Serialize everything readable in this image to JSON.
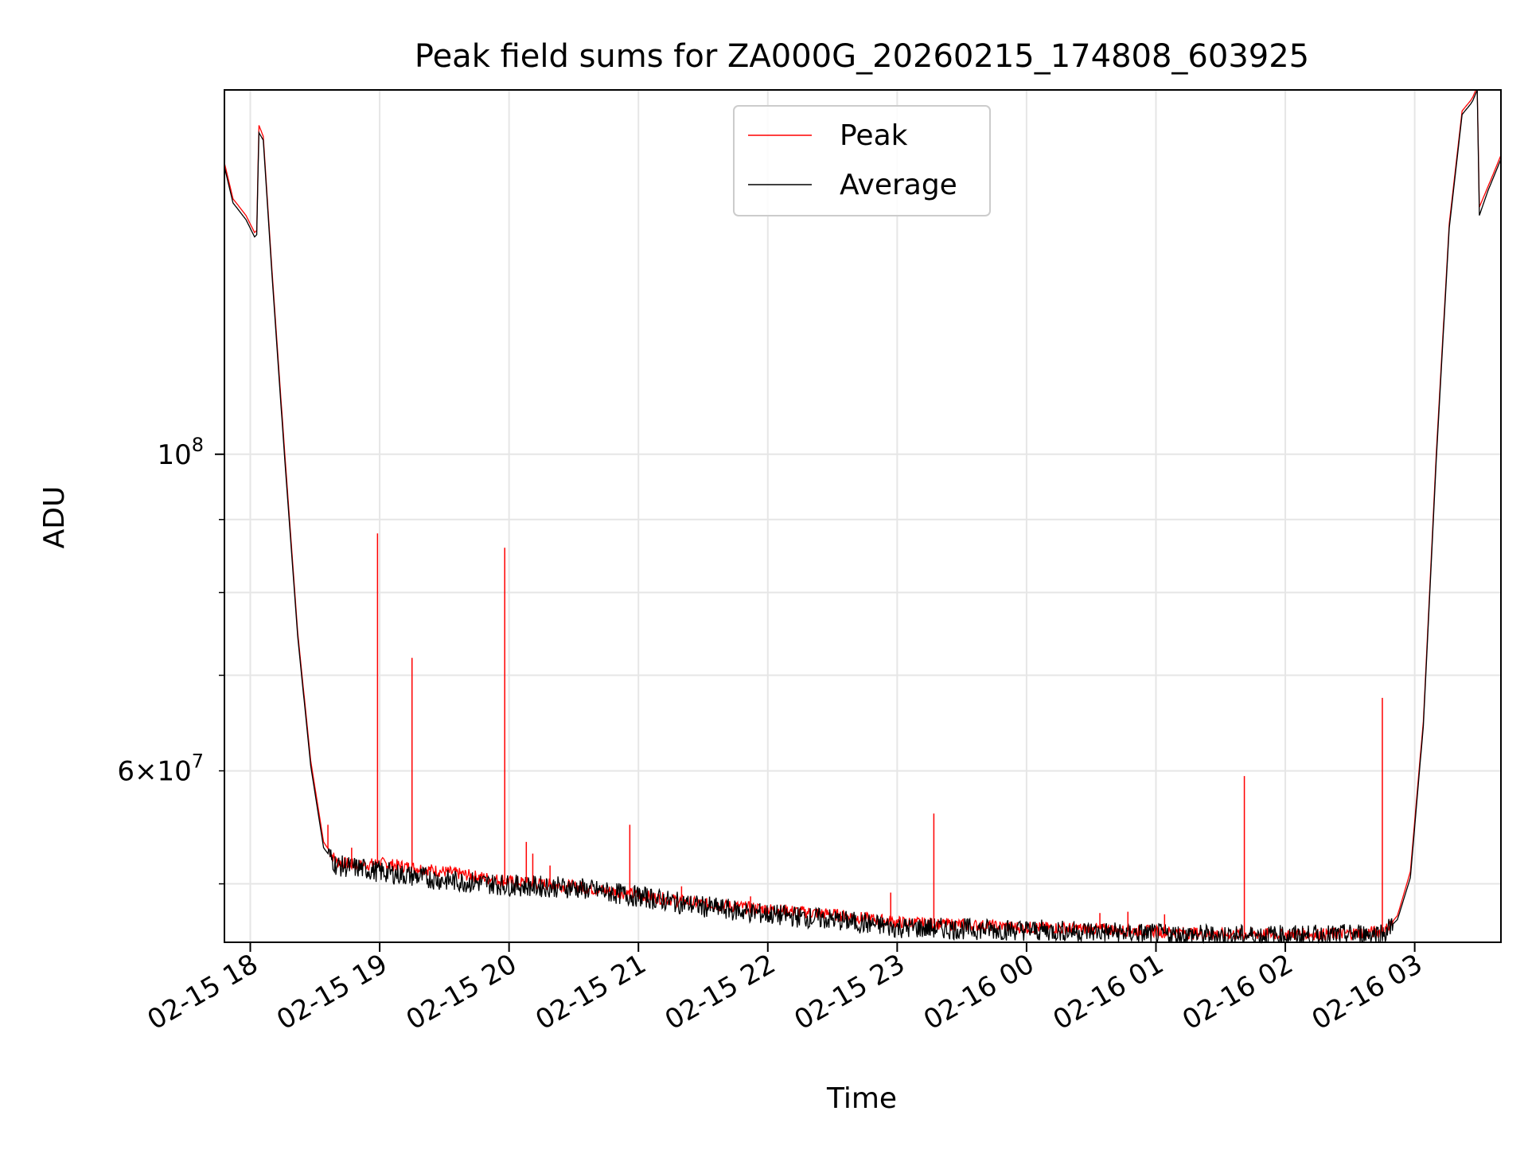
{
  "colors": {
    "background": "#ffffff",
    "grid": "#e6e6e6",
    "peak": "#ff0000",
    "average": "#000000",
    "frame": "#000000",
    "legend_border": "#cccccc"
  },
  "chart_data": {
    "type": "line",
    "title": "Peak field sums for ZA000G_20260215_174808_603925",
    "xlabel": "Time",
    "ylabel": "ADU",
    "yscale": "log",
    "grid": true,
    "legend_position": "top-center",
    "x_axis": {
      "unit": "hours",
      "xlim": [
        "2026-02-15 17:48",
        "2026-02-16 03:40"
      ],
      "ticks": [
        {
          "value": "2026-02-15 18:00",
          "label": "02-15 18"
        },
        {
          "value": "2026-02-15 19:00",
          "label": "02-15 19"
        },
        {
          "value": "2026-02-15 20:00",
          "label": "02-15 20"
        },
        {
          "value": "2026-02-15 21:00",
          "label": "02-15 21"
        },
        {
          "value": "2026-02-15 22:00",
          "label": "02-15 22"
        },
        {
          "value": "2026-02-15 23:00",
          "label": "02-15 23"
        },
        {
          "value": "2026-02-16 00:00",
          "label": "02-16 00"
        },
        {
          "value": "2026-02-16 01:00",
          "label": "02-16 01"
        },
        {
          "value": "2026-02-16 02:00",
          "label": "02-16 02"
        },
        {
          "value": "2026-02-16 03:00",
          "label": "02-16 03"
        }
      ]
    },
    "y_axis": {
      "ylim": [
        45500000,
        180000000
      ],
      "major_ticks": [
        {
          "value": 100000000,
          "label": "10",
          "exp": "8"
        }
      ],
      "minor_ticks_labeled": [
        {
          "value": 60000000,
          "label": "6×10",
          "exp": "7"
        }
      ],
      "minor_ticks": [
        50000000,
        60000000,
        70000000,
        80000000,
        90000000
      ]
    },
    "series": [
      {
        "name": "Peak",
        "color": "#ff0000",
        "points": [
          [
            "2026-02-15 17:48",
            160000000
          ],
          [
            "2026-02-15 17:52",
            151000000
          ],
          [
            "2026-02-15 17:58",
            147000000
          ],
          [
            "2026-02-15 18:02",
            143000000
          ],
          [
            "2026-02-15 18:03",
            143500000
          ],
          [
            "2026-02-15 18:04",
            170000000
          ],
          [
            "2026-02-15 18:06",
            167000000
          ],
          [
            "2026-02-15 18:10",
            135000000
          ],
          [
            "2026-02-15 18:16",
            100000000
          ],
          [
            "2026-02-15 18:22",
            75000000
          ],
          [
            "2026-02-15 18:28",
            61000000
          ],
          [
            "2026-02-15 18:34",
            53500000
          ],
          [
            "2026-02-15 18:40",
            51800000
          ],
          [
            "2026-02-15 18:50",
            51500000
          ],
          [
            "2026-02-15 19:00",
            51700000
          ],
          [
            "2026-02-15 19:30",
            51000000
          ],
          [
            "2026-02-15 20:00",
            50200000
          ],
          [
            "2026-02-15 20:30",
            49800000
          ],
          [
            "2026-02-15 21:00",
            49100000
          ],
          [
            "2026-02-15 21:30",
            48400000
          ],
          [
            "2026-02-15 22:00",
            48000000
          ],
          [
            "2026-02-15 22:30",
            47600000
          ],
          [
            "2026-02-15 23:00",
            47000000
          ],
          [
            "2026-02-15 23:30",
            46800000
          ],
          [
            "2026-02-16 00:00",
            46600000
          ],
          [
            "2026-02-16 00:30",
            46500000
          ],
          [
            "2026-02-16 01:00",
            46300000
          ],
          [
            "2026-02-16 01:30",
            46100000
          ],
          [
            "2026-02-16 02:00",
            46100000
          ],
          [
            "2026-02-16 02:20",
            46100000
          ],
          [
            "2026-02-16 02:46",
            46300000
          ],
          [
            "2026-02-16 02:52",
            47500000
          ],
          [
            "2026-02-16 02:58",
            51000000
          ],
          [
            "2026-02-16 03:04",
            65000000
          ],
          [
            "2026-02-16 03:10",
            100000000
          ],
          [
            "2026-02-16 03:16",
            145000000
          ],
          [
            "2026-02-16 03:22",
            174000000
          ],
          [
            "2026-02-16 03:26",
            177000000
          ],
          [
            "2026-02-16 03:27",
            178000000
          ],
          [
            "2026-02-16 03:29",
            181000000
          ],
          [
            "2026-02-16 03:30",
            149000000
          ],
          [
            "2026-02-16 03:34",
            154000000
          ],
          [
            "2026-02-16 03:40",
            162000000
          ]
        ],
        "spikes": [
          [
            "2026-02-15 18:36",
            55000000
          ],
          [
            "2026-02-15 18:47",
            53000000
          ],
          [
            "2026-02-15 18:59",
            88000000
          ],
          [
            "2026-02-15 19:15",
            72000000
          ],
          [
            "2026-02-15 19:58",
            86000000
          ],
          [
            "2026-02-15 20:08",
            53500000
          ],
          [
            "2026-02-15 20:11",
            52500000
          ],
          [
            "2026-02-15 20:19",
            51500000
          ],
          [
            "2026-02-15 20:56",
            55000000
          ],
          [
            "2026-02-15 21:20",
            49800000
          ],
          [
            "2026-02-15 21:52",
            49000000
          ],
          [
            "2026-02-15 22:57",
            49300000
          ],
          [
            "2026-02-15 23:17",
            56000000
          ],
          [
            "2026-02-16 00:34",
            47700000
          ],
          [
            "2026-02-16 00:47",
            47800000
          ],
          [
            "2026-02-16 01:04",
            47600000
          ],
          [
            "2026-02-16 01:41",
            59500000
          ],
          [
            "2026-02-16 02:45",
            67500000
          ]
        ]
      },
      {
        "name": "Average",
        "color": "#000000",
        "points": [
          [
            "2026-02-15 17:48",
            159000000
          ],
          [
            "2026-02-15 17:52",
            150000000
          ],
          [
            "2026-02-15 17:58",
            146000000
          ],
          [
            "2026-02-15 18:02",
            142000000
          ],
          [
            "2026-02-15 18:03",
            142500000
          ],
          [
            "2026-02-15 18:04",
            168000000
          ],
          [
            "2026-02-15 18:06",
            166000000
          ],
          [
            "2026-02-15 18:10",
            134000000
          ],
          [
            "2026-02-15 18:16",
            99000000
          ],
          [
            "2026-02-15 18:22",
            74500000
          ],
          [
            "2026-02-15 18:28",
            60500000
          ],
          [
            "2026-02-15 18:34",
            53000000
          ],
          [
            "2026-02-15 18:40",
            51500000
          ],
          [
            "2026-02-15 18:50",
            51300000
          ],
          [
            "2026-02-15 19:00",
            51000000
          ],
          [
            "2026-02-15 19:30",
            50300000
          ],
          [
            "2026-02-15 20:00",
            49900000
          ],
          [
            "2026-02-15 20:30",
            49700000
          ],
          [
            "2026-02-15 21:00",
            49000000
          ],
          [
            "2026-02-15 21:30",
            48200000
          ],
          [
            "2026-02-15 22:00",
            47600000
          ],
          [
            "2026-02-15 22:30",
            47200000
          ],
          [
            "2026-02-15 23:00",
            46600000
          ],
          [
            "2026-02-15 23:30",
            46500000
          ],
          [
            "2026-02-16 00:00",
            46400000
          ],
          [
            "2026-02-16 00:30",
            46300000
          ],
          [
            "2026-02-16 01:00",
            46100000
          ],
          [
            "2026-02-16 01:30",
            46000000
          ],
          [
            "2026-02-16 02:00",
            46000000
          ],
          [
            "2026-02-16 02:20",
            46000000
          ],
          [
            "2026-02-16 02:46",
            46200000
          ],
          [
            "2026-02-16 02:52",
            47200000
          ],
          [
            "2026-02-16 02:58",
            50500000
          ],
          [
            "2026-02-16 03:04",
            64500000
          ],
          [
            "2026-02-16 03:10",
            99000000
          ],
          [
            "2026-02-16 03:16",
            144000000
          ],
          [
            "2026-02-16 03:22",
            173000000
          ],
          [
            "2026-02-16 03:26",
            176000000
          ],
          [
            "2026-02-16 03:27",
            177000000
          ],
          [
            "2026-02-16 03:29",
            180000000
          ],
          [
            "2026-02-16 03:30",
            147000000
          ],
          [
            "2026-02-16 03:34",
            153000000
          ],
          [
            "2026-02-16 03:40",
            161000000
          ]
        ]
      }
    ]
  }
}
